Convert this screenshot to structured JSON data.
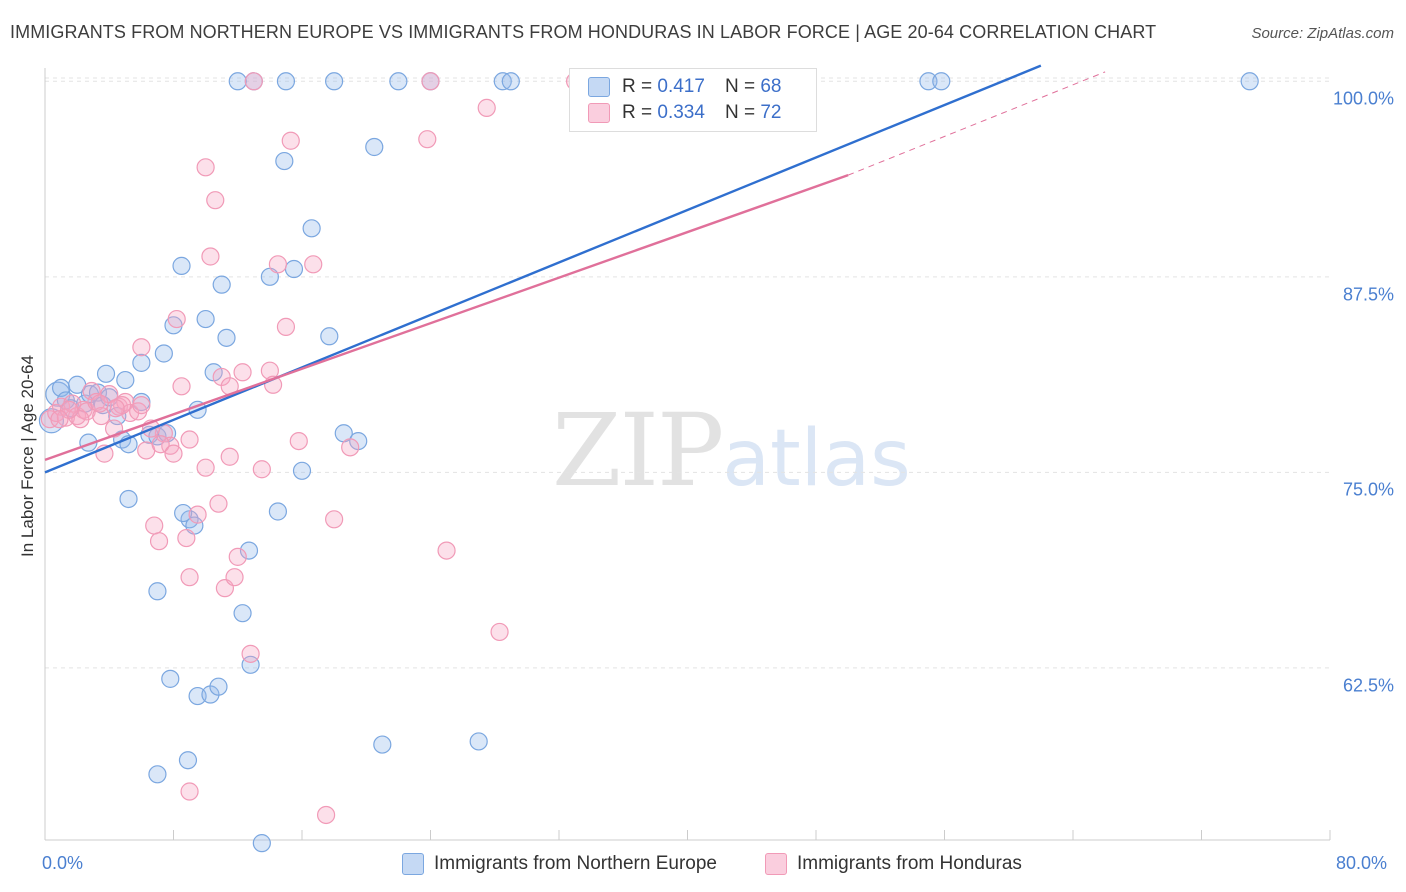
{
  "chart_data": {
    "type": "scatter",
    "title": "IMMIGRANTS FROM NORTHERN EUROPE VS IMMIGRANTS FROM HONDURAS IN LABOR FORCE | AGE 20-64 CORRELATION CHART",
    "source": "Source: ZipAtlas.com",
    "ylabel": "In Labor Force | Age 20-64",
    "xlim": [
      0,
      80
    ],
    "ylim": [
      51.5,
      102
    ],
    "y_ticks": [
      {
        "value": 100,
        "label": "100.0%"
      },
      {
        "value": 87.5,
        "label": "87.5%"
      },
      {
        "value": 75,
        "label": "75.0%"
      },
      {
        "value": 62.5,
        "label": "62.5%"
      }
    ],
    "x_tick_labels": {
      "min": "0.0%",
      "max": "80.0%"
    },
    "x_minor_ticks": [
      8,
      16,
      24,
      32,
      40,
      48,
      56,
      64,
      72,
      80
    ],
    "watermark": {
      "zip": "ZIP",
      "atlas": "atlas"
    },
    "legend": {
      "r_label": "R =",
      "n_label": "N =",
      "entries": [
        {
          "r": "0.417",
          "n": "68"
        },
        {
          "r": "0.334",
          "n": "72"
        }
      ]
    },
    "series": [
      {
        "name": "Immigrants from Northern Europe",
        "color": "#7ba7e0",
        "fill": "rgba(150,185,235,0.35)",
        "line_color": "#2f6fcf",
        "trend": {
          "x": [
            0,
            62
          ],
          "y": [
            75,
            101
          ]
        },
        "points": [
          [
            0.4,
            78.3
          ],
          [
            0.8,
            80.0
          ],
          [
            1.0,
            80.4
          ],
          [
            1.3,
            79.6
          ],
          [
            1.6,
            79.1
          ],
          [
            2.0,
            80.6
          ],
          [
            2.5,
            79.4
          ],
          [
            2.8,
            80.0
          ],
          [
            3.3,
            80.1
          ],
          [
            3.6,
            79.3
          ],
          [
            2.7,
            76.9
          ],
          [
            4.0,
            79.8
          ],
          [
            4.5,
            78.6
          ],
          [
            3.8,
            81.3
          ],
          [
            4.8,
            77.1
          ],
          [
            5.2,
            76.8
          ],
          [
            5.0,
            80.9
          ],
          [
            6.0,
            82.0
          ],
          [
            6.5,
            77.4
          ],
          [
            7.0,
            77.3
          ],
          [
            7.6,
            77.5
          ],
          [
            7.4,
            82.6
          ],
          [
            8.0,
            84.4
          ],
          [
            8.5,
            88.2
          ],
          [
            9.0,
            72.0
          ],
          [
            9.5,
            79.0
          ],
          [
            10.0,
            84.8
          ],
          [
            10.5,
            81.4
          ],
          [
            11.0,
            87.0
          ],
          [
            11.3,
            83.6
          ],
          [
            12.3,
            66.0
          ],
          [
            12.8,
            62.7
          ],
          [
            13.5,
            51.3
          ],
          [
            14.0,
            87.5
          ],
          [
            14.5,
            72.5
          ],
          [
            14.9,
            94.9
          ],
          [
            15.5,
            88.0
          ],
          [
            16.6,
            90.6
          ],
          [
            17.7,
            83.7
          ],
          [
            18.6,
            77.5
          ],
          [
            19.5,
            77.0
          ],
          [
            20.5,
            95.8
          ],
          [
            21.0,
            57.6
          ],
          [
            22.0,
            100.0
          ],
          [
            24.0,
            100.0
          ],
          [
            27.0,
            57.8
          ],
          [
            28.5,
            100.0
          ],
          [
            29.0,
            100.0
          ],
          [
            13.0,
            100.0
          ],
          [
            16.0,
            75.1
          ],
          [
            18.0,
            100.0
          ],
          [
            12.0,
            100.0
          ],
          [
            7.0,
            67.4
          ],
          [
            5.2,
            73.3
          ],
          [
            8.6,
            72.4
          ],
          [
            9.3,
            71.6
          ],
          [
            12.7,
            70.0
          ],
          [
            7.8,
            61.8
          ],
          [
            9.5,
            60.7
          ],
          [
            10.3,
            60.8
          ],
          [
            10.8,
            61.3
          ],
          [
            8.9,
            56.6
          ],
          [
            7.0,
            55.7
          ],
          [
            55.0,
            100.0
          ],
          [
            55.8,
            100.0
          ],
          [
            75.0,
            100.0
          ],
          [
            15.0,
            100.0
          ],
          [
            6.0,
            79.5
          ]
        ]
      },
      {
        "name": "Immigrants from Honduras",
        "color": "#f19ab7",
        "fill": "rgba(245,165,195,0.35)",
        "line_color": "#e0709a",
        "trend": {
          "x": [
            0,
            50
          ],
          "y": [
            75.8,
            94
          ]
        },
        "trend_dashed": {
          "x": [
            50,
            66
          ],
          "y": [
            94,
            100.6
          ]
        },
        "points": [
          [
            0.3,
            78.4
          ],
          [
            0.7,
            78.8
          ],
          [
            1.0,
            79.2
          ],
          [
            1.3,
            78.5
          ],
          [
            1.7,
            79.4
          ],
          [
            2.0,
            78.6
          ],
          [
            2.4,
            79.0
          ],
          [
            2.6,
            78.9
          ],
          [
            2.9,
            80.2
          ],
          [
            3.2,
            79.5
          ],
          [
            3.5,
            78.6
          ],
          [
            3.7,
            76.2
          ],
          [
            4.0,
            80.0
          ],
          [
            4.3,
            77.8
          ],
          [
            4.6,
            79.2
          ],
          [
            5.0,
            79.5
          ],
          [
            5.3,
            78.8
          ],
          [
            5.8,
            78.9
          ],
          [
            6.0,
            83.0
          ],
          [
            6.3,
            76.4
          ],
          [
            6.8,
            71.6
          ],
          [
            7.1,
            70.6
          ],
          [
            7.4,
            77.5
          ],
          [
            7.8,
            76.7
          ],
          [
            8.2,
            84.8
          ],
          [
            8.5,
            80.5
          ],
          [
            8.8,
            70.8
          ],
          [
            9.0,
            68.3
          ],
          [
            9.5,
            72.3
          ],
          [
            10.0,
            75.3
          ],
          [
            10.3,
            88.8
          ],
          [
            10.6,
            92.4
          ],
          [
            11.2,
            67.6
          ],
          [
            11.5,
            76.0
          ],
          [
            11.8,
            68.3
          ],
          [
            12.3,
            81.4
          ],
          [
            12.8,
            63.4
          ],
          [
            13.5,
            75.2
          ],
          [
            14.0,
            81.5
          ],
          [
            14.5,
            88.3
          ],
          [
            15.0,
            84.3
          ],
          [
            15.3,
            96.2
          ],
          [
            15.8,
            77.0
          ],
          [
            16.7,
            88.3
          ],
          [
            17.5,
            53.1
          ],
          [
            18.0,
            72.0
          ],
          [
            19.0,
            76.6
          ],
          [
            24.0,
            100.0
          ],
          [
            23.8,
            96.3
          ],
          [
            25.0,
            70.0
          ],
          [
            27.5,
            98.3
          ],
          [
            28.3,
            64.8
          ],
          [
            33.0,
            100.0
          ],
          [
            13.0,
            100.0
          ],
          [
            10.0,
            94.5
          ],
          [
            11.0,
            81.1
          ],
          [
            9.0,
            77.1
          ],
          [
            6.6,
            77.8
          ],
          [
            7.2,
            76.8
          ],
          [
            8.0,
            76.2
          ],
          [
            4.8,
            79.3
          ],
          [
            3.4,
            79.4
          ],
          [
            2.2,
            78.4
          ],
          [
            1.5,
            79.0
          ],
          [
            0.9,
            78.4
          ],
          [
            9.0,
            54.6
          ],
          [
            11.5,
            80.5
          ],
          [
            12.0,
            69.6
          ],
          [
            10.8,
            73.0
          ],
          [
            14.2,
            80.6
          ],
          [
            4.4,
            79.1
          ],
          [
            6.0,
            79.3
          ]
        ]
      }
    ]
  }
}
